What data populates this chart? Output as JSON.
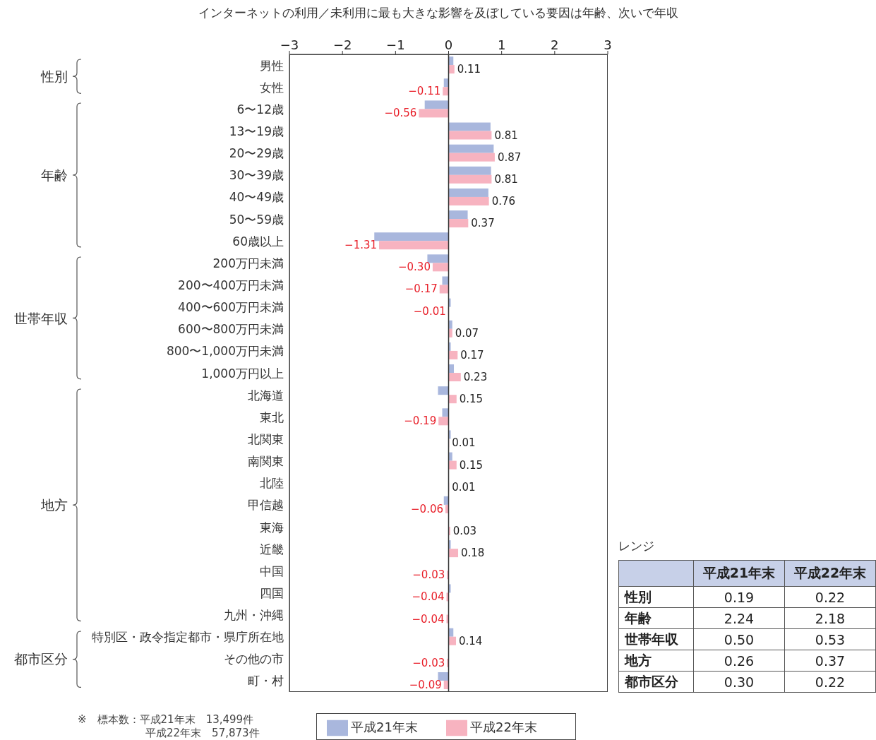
{
  "chart_data": [
    {
      "type": "bar",
      "orientation": "horizontal",
      "title": "インターネットの利用／未利用に最も大きな影響を及ぼしている要因は年齢、次いで年収",
      "categories": [
        "男性",
        "女性",
        "6〜12歳",
        "13〜19歳",
        "20〜29歳",
        "30〜39歳",
        "40〜49歳",
        "50〜59歳",
        "60歳以上",
        "200万円未満",
        "200〜400万円未満",
        "400〜600万円未満",
        "600〜800万円未満",
        "800〜1,000万円未満",
        "1,000万円以上",
        "北海道",
        "東北",
        "北関東",
        "南関東",
        "北陸",
        "甲信越",
        "東海",
        "近畿",
        "中国",
        "四国",
        "九州・沖縄",
        "特別区・政令指定都市・県庁所在地",
        "その他の市",
        "町・村"
      ],
      "series": [
        {
          "name": "平成21年末",
          "color": "#a9b7dd",
          "values": [
            0.09,
            -0.09,
            -0.45,
            0.79,
            0.85,
            0.8,
            0.75,
            0.36,
            -1.4,
            -0.4,
            -0.12,
            0.04,
            0.07,
            0.04,
            0.1,
            -0.2,
            -0.12,
            0.04,
            0.07,
            null,
            -0.09,
            null,
            0.04,
            null,
            0.04,
            null,
            0.09,
            0,
            -0.2
          ]
        },
        {
          "name": "平成22年末",
          "color": "#f7b3c0",
          "values": [
            0.11,
            -0.11,
            -0.56,
            0.81,
            0.87,
            0.81,
            0.76,
            0.37,
            -1.31,
            -0.3,
            -0.17,
            -0.01,
            0.07,
            0.17,
            0.23,
            0.15,
            -0.19,
            0.01,
            0.15,
            0.01,
            -0.06,
            0.03,
            0.18,
            -0.03,
            -0.04,
            -0.04,
            0.14,
            -0.03,
            -0.09
          ],
          "value_labels": [
            "0.11",
            "−0.11",
            "−0.56",
            "0.81",
            "0.87",
            "0.81",
            "0.76",
            "0.37",
            "−1.31",
            "−0.30",
            "−0.17",
            "−0.01",
            "0.07",
            "0.17",
            "0.23",
            "0.15",
            "−0.19",
            "0.01",
            "0.15",
            "0.01",
            "−0.06",
            "0.03",
            "0.18",
            "−0.03",
            "−0.04",
            "−0.04",
            "0.14",
            "−0.03",
            "−0.09"
          ]
        }
      ],
      "xlim": [
        -3,
        3
      ],
      "xticks": [
        {
          "value": -3,
          "label": "−3"
        },
        {
          "value": -2,
          "label": "−2"
        },
        {
          "value": -1,
          "label": "−1"
        },
        0,
        1,
        2,
        3
      ],
      "ref_lines": [
        {
          "axis": "x",
          "value": 0,
          "color": "#333333"
        }
      ],
      "legend": "bottom",
      "annotations": [
        "性別",
        "年齢",
        "世帯年収",
        "地方",
        "都市区分",
        "※　標本数：平成21年末　13,499件",
        "平成22年末　57,873件"
      ]
    },
    {
      "type": "other",
      "title": "レンジ",
      "categories": [
        "性別",
        "年齢",
        "世帯年収",
        "地方",
        "都市区分"
      ],
      "series": [
        {
          "name": "平成21年末",
          "values": [
            0.19,
            2.24,
            0.5,
            0.26,
            0.3
          ],
          "value_labels": [
            "0.19",
            "2.24",
            "0.50",
            "0.26",
            "0.30"
          ]
        },
        {
          "name": "平成22年末",
          "values": [
            0.22,
            2.18,
            0.53,
            0.37,
            0.22
          ],
          "value_labels": [
            "0.22",
            "2.18",
            "0.53",
            "0.37",
            "0.22"
          ]
        }
      ]
    }
  ]
}
